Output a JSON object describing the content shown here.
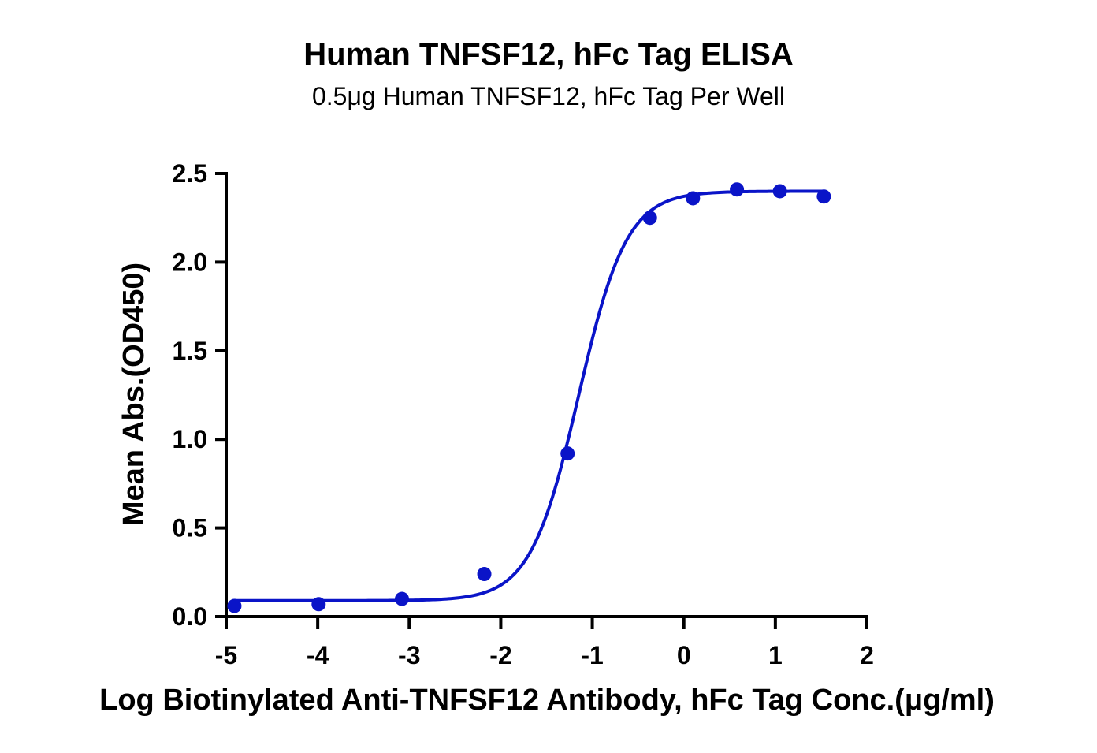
{
  "chart_data": {
    "type": "scatter",
    "title": "Human TNFSF12, hFc Tag ELISA",
    "subtitle": "0.5μg Human TNFSF12, hFc Tag Per Well",
    "xlabel": "Log Biotinylated Anti-TNFSF12 Antibody, hFc Tag Conc.(μg/ml)",
    "ylabel": "Mean Abs.(OD450)",
    "xlim": [
      -5,
      2
    ],
    "ylim": [
      0,
      2.5
    ],
    "xticks": [
      -5,
      -4,
      -3,
      -2,
      -1,
      0,
      1,
      2
    ],
    "xtick_labels": [
      "-5",
      "-4",
      "-3",
      "-2",
      "-1",
      "0",
      "1",
      "2"
    ],
    "yticks": [
      0.0,
      0.5,
      1.0,
      1.5,
      2.0,
      2.5
    ],
    "ytick_labels": [
      "0.0",
      "0.5",
      "1.0",
      "1.5",
      "2.0",
      "2.5"
    ],
    "grid": false,
    "series": [
      {
        "x": [
          -4.91,
          -3.99,
          -3.08,
          -2.18,
          -1.27,
          -0.37,
          0.1,
          0.58,
          1.05,
          1.53
        ],
        "y": [
          0.06,
          0.07,
          0.1,
          0.24,
          0.92,
          2.25,
          2.36,
          2.41,
          2.4,
          2.37
        ],
        "color": "#0a14c8"
      }
    ],
    "fit_curve": {
      "model": "4PL",
      "bottom": 0.09,
      "top": 2.4,
      "log_ec50": -1.15,
      "hill_slope": 1.65,
      "x_range": [
        -4.91,
        1.53
      ],
      "color": "#0a14c8"
    }
  }
}
